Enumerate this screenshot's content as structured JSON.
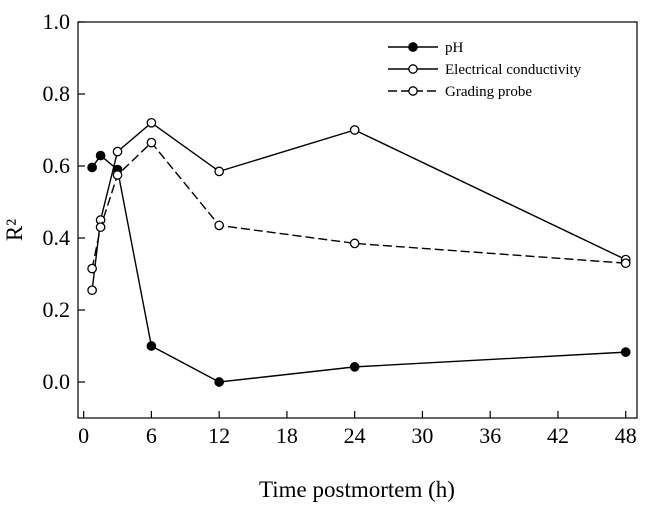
{
  "chart_data": {
    "type": "line",
    "x_label": "Time postmortem (h)",
    "y_label": "R²",
    "xlim": [
      -0.5,
      49
    ],
    "xticks": [
      0,
      6,
      12,
      18,
      24,
      30,
      36,
      42,
      48
    ],
    "ylim": [
      -0.1,
      1.0
    ],
    "yticks": [
      {
        "value": 0,
        "label": "0.0"
      },
      {
        "value": 0.2,
        "label": "0.2"
      },
      {
        "value": 0.4,
        "label": "0.4"
      },
      {
        "value": 0.6,
        "label": "0.6"
      },
      {
        "value": 0.8,
        "label": "0.8"
      },
      {
        "value": 1,
        "label": "1.0"
      }
    ],
    "legend": "upper right",
    "series": [
      {
        "name": "pH",
        "color": "#000000",
        "marker": "filled",
        "dash": "solid",
        "x": [
          0.75,
          1.5,
          3,
          6,
          12,
          24,
          48
        ],
        "values": [
          0.596,
          0.629,
          0.59,
          0.1,
          0.0,
          0.042,
          0.083
        ]
      },
      {
        "name": "Electrical conductivity",
        "color": "#000000",
        "marker": "open",
        "dash": "solid",
        "x": [
          0.75,
          1.5,
          3,
          6,
          12,
          24,
          48
        ],
        "values": [
          0.255,
          0.45,
          0.64,
          0.72,
          0.585,
          0.7,
          0.34
        ]
      },
      {
        "name": "Grading probe",
        "color": "#000000",
        "marker": "open",
        "dash": "dashed",
        "x": [
          0.75,
          1.5,
          3,
          6,
          12,
          24,
          48
        ],
        "values": [
          0.315,
          0.43,
          0.575,
          0.665,
          0.435,
          0.385,
          0.33
        ]
      }
    ]
  }
}
